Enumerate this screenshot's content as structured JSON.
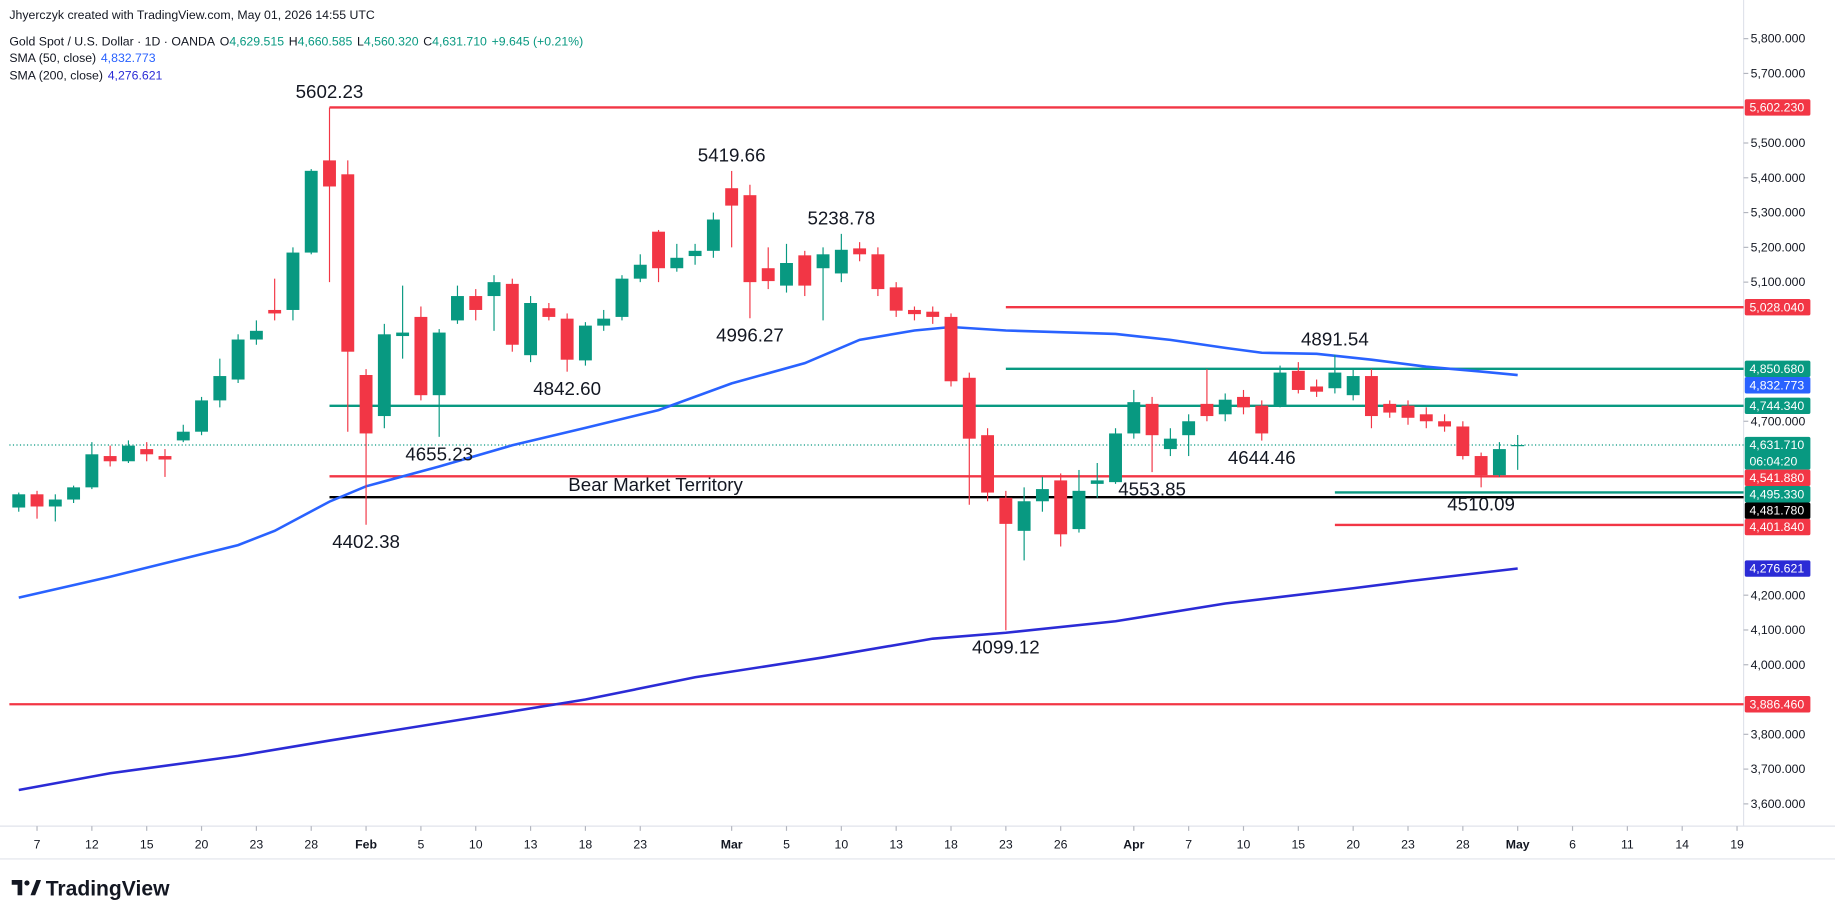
{
  "header": "Jhyerczyk created with TradingView.com, May 01, 2026 14:55 UTC",
  "branding": "TradingView",
  "chart_data": {
    "type": "candlestick",
    "legend": {
      "title": "Gold Spot / U.S. Dollar · 1D · OANDA",
      "items": [
        {
          "key": "O",
          "value": "4,629.515"
        },
        {
          "key": "H",
          "value": "4,660.585"
        },
        {
          "key": "L",
          "value": "4,560.320"
        },
        {
          "key": "C",
          "value": "4,631.710"
        }
      ],
      "change": "+9.645 (+0.21%)"
    },
    "countdown": "06:04:20",
    "up_color": "#089981",
    "down_color": "#f23645",
    "categories": [
      "2026-01-06",
      "2026-01-07",
      "2026-01-08",
      "2026-01-09",
      "2026-01-12",
      "2026-01-13",
      "2026-01-14",
      "2026-01-15",
      "2026-01-16",
      "2026-01-19",
      "2026-01-20",
      "2026-01-21",
      "2026-01-22",
      "2026-01-23",
      "2026-01-26",
      "2026-01-27",
      "2026-01-28",
      "2026-01-29",
      "2026-01-30",
      "2026-02-02",
      "2026-02-03",
      "2026-02-04",
      "2026-02-05",
      "2026-02-06",
      "2026-02-09",
      "2026-02-10",
      "2026-02-11",
      "2026-02-12",
      "2026-02-13",
      "2026-02-16",
      "2026-02-17",
      "2026-02-18",
      "2026-02-19",
      "2026-02-20",
      "2026-02-23",
      "2026-02-24",
      "2026-02-25",
      "2026-02-26",
      "2026-02-27",
      "2026-03-02",
      "2026-03-03",
      "2026-03-04",
      "2026-03-05",
      "2026-03-06",
      "2026-03-09",
      "2026-03-10",
      "2026-03-11",
      "2026-03-12",
      "2026-03-13",
      "2026-03-16",
      "2026-03-17",
      "2026-03-18",
      "2026-03-19",
      "2026-03-20",
      "2026-03-23",
      "2026-03-24",
      "2026-03-25",
      "2026-03-26",
      "2026-03-27",
      "2026-03-30",
      "2026-03-31",
      "2026-04-01",
      "2026-04-02",
      "2026-04-06",
      "2026-04-07",
      "2026-04-08",
      "2026-04-09",
      "2026-04-10",
      "2026-04-13",
      "2026-04-14",
      "2026-04-15",
      "2026-04-16",
      "2026-04-17",
      "2026-04-20",
      "2026-04-21",
      "2026-04-22",
      "2026-04-23",
      "2026-04-24",
      "2026-04-27",
      "2026-04-28",
      "2026-04-29",
      "2026-04-30",
      "2026-05-01"
    ],
    "open": [
      4452,
      4490,
      4455,
      4475,
      4510,
      4600,
      4585,
      4620,
      4600,
      4645,
      4670,
      4760,
      4820,
      4935,
      5020,
      5020,
      5185,
      5450,
      5410,
      4833,
      4715,
      4945,
      5000,
      4775,
      4990,
      5060,
      5060,
      5095,
      4890,
      5025,
      4995,
      4875,
      4975,
      5000,
      5110,
      5245,
      5140,
      5175,
      5190,
      5370,
      5350,
      5140,
      5090,
      5177,
      5140,
      5125,
      5197,
      5180,
      5085,
      5020,
      5015,
      5000,
      4825,
      4660,
      4480,
      4385,
      4470,
      4530,
      4390,
      4520,
      4525,
      4665,
      4750,
      4620,
      4660,
      4750,
      4720,
      4770,
      4745,
      4745,
      4845,
      4800,
      4795,
      4775,
      4830,
      4750,
      4745,
      4720,
      4700,
      4685,
      4600,
      4545,
      4629.515
    ],
    "high": [
      4495,
      4500,
      4490,
      4515,
      4640,
      4630,
      4645,
      4640,
      4620,
      4690,
      4770,
      4880,
      4950,
      4990,
      5110,
      5200,
      5425,
      5602.23,
      5450,
      4850,
      4980,
      5090,
      5030,
      4965,
      5090,
      5080,
      5120,
      5110,
      5060,
      5040,
      5010,
      4985,
      5020,
      5120,
      5180,
      5250,
      5210,
      5210,
      5300,
      5419.66,
      5380,
      5200,
      5210,
      5190,
      5200,
      5238.78,
      5215,
      5200,
      5100,
      5030,
      5030,
      5010,
      4840,
      4680,
      4500,
      4510,
      4540,
      4550,
      4560,
      4580,
      4680,
      4790,
      4770,
      4680,
      4720,
      4850,
      4780,
      4790,
      4760,
      4860,
      4870,
      4820,
      4891.54,
      4850,
      4850,
      4760,
      4760,
      4740,
      4720,
      4700,
      4610,
      4640,
      4660.585
    ],
    "low": [
      4440,
      4420,
      4412,
      4465,
      4505,
      4570,
      4580,
      4585,
      4540,
      4640,
      4660,
      4740,
      4810,
      4920,
      4990,
      4990,
      5180,
      5100,
      4670,
      4402.38,
      4680,
      4880,
      4760,
      4655.23,
      4980,
      4990,
      4960,
      4900,
      4870,
      4990,
      4842.6,
      4860,
      4960,
      4990,
      5100,
      5100,
      5130,
      5150,
      5170,
      5200,
      4996.27,
      5080,
      5070,
      5060,
      4990,
      5100,
      5160,
      5060,
      5000,
      4990,
      4980,
      4800,
      4460,
      4470,
      4099.12,
      4300,
      4440,
      4340,
      4380,
      4480,
      4520,
      4650,
      4553.85,
      4600,
      4600,
      4700,
      4700,
      4720,
      4644.46,
      4740,
      4780,
      4770,
      4780,
      4760,
      4680,
      4710,
      4690,
      4680,
      4670,
      4590,
      4510.09,
      4540,
      4560.32
    ],
    "close": [
      4490,
      4455,
      4475,
      4510,
      4605,
      4585,
      4630,
      4605,
      4590,
      4670,
      4760,
      4830,
      4935,
      4960,
      5010,
      5185,
      5420,
      5375,
      4900,
      4665,
      4950,
      4955,
      4775,
      4955,
      5060,
      5020,
      5100,
      4920,
      5040,
      5000,
      4877,
      4975,
      4995,
      5110,
      5150,
      5140,
      5170,
      5190,
      5280,
      5320,
      5100,
      5103,
      5155,
      5090,
      5180,
      5193,
      5180,
      5080,
      5018,
      5008,
      5000,
      4815,
      4650,
      4495,
      4405,
      4470,
      4505,
      4375,
      4500,
      4530,
      4665,
      4755,
      4660,
      4650,
      4700,
      4715,
      4762,
      4740,
      4665,
      4840,
      4790,
      4785,
      4840,
      4830,
      4715,
      4725,
      4710,
      4700,
      4685,
      4600,
      4545,
      4620,
      4631.71
    ],
    "series": [
      {
        "name": "SMA (50, close)",
        "color": "#2962ff",
        "last_label": "4,832.773",
        "x": [
          "2026-01-06",
          "2026-01-13",
          "2026-01-22",
          "2026-01-26",
          "2026-01-29",
          "2026-02-02",
          "2026-02-06",
          "2026-02-12",
          "2026-02-18",
          "2026-02-24",
          "2026-03-02",
          "2026-03-06",
          "2026-03-11",
          "2026-03-16",
          "2026-03-18",
          "2026-03-23",
          "2026-03-31",
          "2026-04-06",
          "2026-04-09",
          "2026-04-13",
          "2026-04-16",
          "2026-04-21",
          "2026-04-24",
          "2026-04-29",
          "2026-05-01"
        ],
        "values": [
          4193,
          4253,
          4344,
          4385,
          4469,
          4513,
          4570,
          4631,
          4681,
          4732,
          4809,
          4867,
          4934,
          4961,
          4971,
          4961,
          4951,
          4934,
          4911,
          4897,
          4894,
          4877,
          4857,
          4843,
          4832.773
        ]
      },
      {
        "name": "SMA (200, close)",
        "color": "#2b2bd6",
        "last_label": "4,276.621",
        "x": [
          "2026-01-06",
          "2026-01-13",
          "2026-01-22",
          "2026-01-29",
          "2026-02-10",
          "2026-02-18",
          "2026-02-26",
          "2026-03-09",
          "2026-03-17",
          "2026-03-23",
          "2026-03-31",
          "2026-04-09",
          "2026-04-20",
          "2026-04-23",
          "2026-05-01"
        ],
        "values": [
          3640,
          3688,
          3738,
          3782,
          3849,
          3900,
          3964,
          4021,
          4075,
          4092,
          4125,
          4176,
          4220,
          4240,
          4276.621
        ]
      }
    ],
    "levels": [
      {
        "value": 5602.23,
        "label": "5,602.230",
        "color": "#f23645",
        "from": "2026-01-29"
      },
      {
        "value": 5028.04,
        "label": "5,028.040",
        "color": "#f23645",
        "from": "2026-03-23"
      },
      {
        "value": 4850.68,
        "label": "4,850.680",
        "color": "#089981",
        "from": "2026-03-23"
      },
      {
        "value": 4744.34,
        "label": "4,744.340",
        "color": "#089981",
        "from": "2026-01-29"
      },
      {
        "value": 4541.88,
        "label": "4,541.880",
        "color": "#f23645",
        "from": "2026-01-29"
      },
      {
        "value": 4495.33,
        "label": "4,495.330",
        "color": "#089981",
        "from": "2026-04-17"
      },
      {
        "value": 4481.78,
        "label": "4,481.780",
        "color": "#000000",
        "from": "2026-01-29"
      },
      {
        "value": 4401.84,
        "label": "4,401.840",
        "color": "#f23645",
        "from": "2026-04-17"
      },
      {
        "value": 3886.46,
        "label": "3,886.460",
        "color": "#f23645"
      }
    ],
    "annotations": [
      {
        "label": "5602.23",
        "date": "2026-01-29",
        "value": 5602.23
      },
      {
        "label": "5419.66",
        "date": "2026-03-02",
        "value": 5419.66
      },
      {
        "label": "5238.78",
        "date": "2026-03-10",
        "value": 5238.78
      },
      {
        "label": "4996.27",
        "date": "2026-03-03",
        "value": 4996.27
      },
      {
        "label": "4842.60",
        "date": "2026-02-17",
        "value": 4842.6
      },
      {
        "label": "4655.23",
        "date": "2026-02-06",
        "value": 4655.23
      },
      {
        "label": "4402.38",
        "date": "2026-02-02",
        "value": 4402.38
      },
      {
        "label": "4099.12",
        "date": "2026-03-23",
        "value": 4099.12
      },
      {
        "label": "4553.85",
        "date": "2026-04-02",
        "value": 4553.85
      },
      {
        "label": "4644.46",
        "date": "2026-04-13",
        "value": 4644.46
      },
      {
        "label": "4891.54",
        "date": "2026-04-17",
        "value": 4891.54
      },
      {
        "label": "4510.09",
        "date": "2026-04-29",
        "value": 4510.09
      }
    ],
    "zone_label": "Bear Market Territory",
    "ylim": [
      3536,
      5911
    ],
    "yticks": [
      {
        "value": 5800,
        "label": "5,800.000"
      },
      {
        "value": 5700,
        "label": "5,700.000"
      },
      {
        "value": 5500,
        "label": "5,500.000"
      },
      {
        "value": 5400,
        "label": "5,400.000"
      },
      {
        "value": 5300,
        "label": "5,300.000"
      },
      {
        "value": 5200,
        "label": "5,200.000"
      },
      {
        "value": 5100,
        "label": "5,100.000"
      },
      {
        "value": 4700,
        "label": "4,700.000"
      },
      {
        "value": 4200,
        "label": "4,200.000"
      },
      {
        "value": 4100,
        "label": "4,100.000"
      },
      {
        "value": 4000,
        "label": "4,000.000"
      },
      {
        "value": 3800,
        "label": "3,800.000"
      },
      {
        "value": 3700,
        "label": "3,700.000"
      },
      {
        "value": 3600,
        "label": "3,600.000"
      }
    ],
    "xticks": [
      {
        "value": "2026-01-07",
        "label": "7"
      },
      {
        "value": "2026-01-12",
        "label": "12"
      },
      {
        "value": "2026-01-15",
        "label": "15"
      },
      {
        "value": "2026-01-20",
        "label": "20"
      },
      {
        "value": "2026-01-23",
        "label": "23"
      },
      {
        "value": "2026-01-28",
        "label": "28"
      },
      {
        "value": "2026-02-02",
        "label": "Feb"
      },
      {
        "value": "2026-02-05",
        "label": "5"
      },
      {
        "value": "2026-02-10",
        "label": "10"
      },
      {
        "value": "2026-02-13",
        "label": "13"
      },
      {
        "value": "2026-02-18",
        "label": "18"
      },
      {
        "value": "2026-02-23",
        "label": "23"
      },
      {
        "value": "2026-03-02",
        "label": "Mar"
      },
      {
        "value": "2026-03-05",
        "label": "5"
      },
      {
        "value": "2026-03-10",
        "label": "10"
      },
      {
        "value": "2026-03-13",
        "label": "13"
      },
      {
        "value": "2026-03-18",
        "label": "18"
      },
      {
        "value": "2026-03-23",
        "label": "23"
      },
      {
        "value": "2026-03-26",
        "label": "26"
      },
      {
        "value": "2026-04-01",
        "label": "Apr"
      },
      {
        "value": "2026-04-07",
        "label": "7"
      },
      {
        "value": "2026-04-10",
        "label": "10"
      },
      {
        "value": "2026-04-15",
        "label": "15"
      },
      {
        "value": "2026-04-20",
        "label": "20"
      },
      {
        "value": "2026-04-23",
        "label": "23"
      },
      {
        "value": "2026-04-28",
        "label": "28"
      },
      {
        "value": "2026-05-01",
        "label": "May"
      },
      {
        "value": "2026-05-06",
        "label": "6"
      },
      {
        "value": "2026-05-11",
        "label": "11"
      },
      {
        "value": "2026-05-14",
        "label": "14"
      },
      {
        "value": "2026-05-19",
        "label": "19"
      }
    ]
  }
}
